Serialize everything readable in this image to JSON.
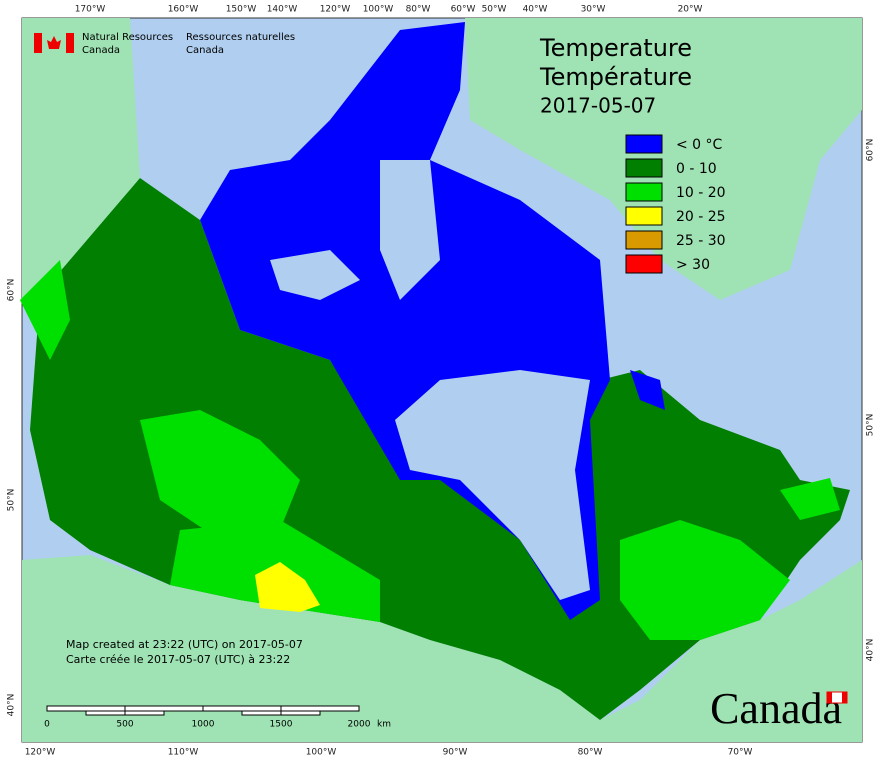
{
  "header": {
    "agency_en": [
      "Natural Resources",
      "Canada"
    ],
    "agency_fr": [
      "Ressources naturelles",
      "Canada"
    ]
  },
  "title": {
    "en": "Temperature",
    "fr": "Température",
    "date": "2017-05-07"
  },
  "legend": [
    {
      "label": "< 0 °C",
      "color": "#0000ff"
    },
    {
      "label": "0 - 10",
      "color": "#007f00"
    },
    {
      "label": "10 - 20",
      "color": "#00e000"
    },
    {
      "label": "20 - 25",
      "color": "#ffff00"
    },
    {
      "label": "25 - 30",
      "color": "#d99a00"
    },
    {
      "label": "> 30",
      "color": "#ff0000"
    }
  ],
  "graticule": {
    "top": [
      "170°W",
      "160°W",
      "150°W",
      "140°W",
      "120°W",
      "100°W",
      "80°W",
      "60°W",
      "50°W",
      "40°W",
      "30°W",
      "20°W"
    ],
    "bottom": [
      "120°W",
      "110°W",
      "100°W",
      "90°W",
      "80°W",
      "70°W"
    ],
    "left": [
      "60°N",
      "50°N",
      "40°N"
    ],
    "right": [
      "60°N",
      "50°N",
      "40°N"
    ]
  },
  "credits": [
    "Map created at 23:22 (UTC) on 2017-05-07",
    "Carte créée le 2017-05-07 (UTC) à 23:22"
  ],
  "scale_bar": {
    "labels": [
      "0",
      "500",
      "1000",
      "1500",
      "2000"
    ],
    "unit": "km"
  },
  "wordmark": "Canada"
}
